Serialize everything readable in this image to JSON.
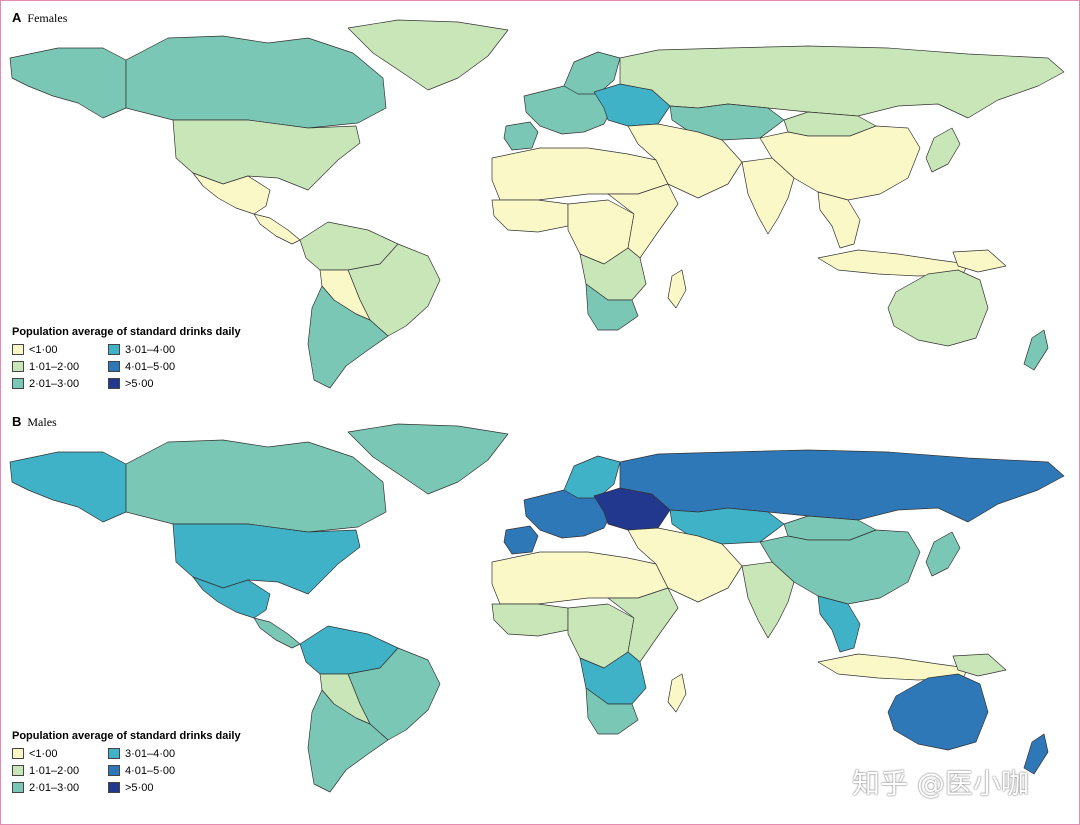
{
  "colors": {
    "lt1": "#fbf8c8",
    "c1to2": "#c9e6b8",
    "c2to3": "#79c7b4",
    "c3to4": "#3fb2c7",
    "c4to5": "#2e78b8",
    "gt5": "#22378e",
    "border": "#333333",
    "frame": "#e58ab0"
  },
  "panels": [
    {
      "letter": "A",
      "title": "Females",
      "legend_title": "Population average of standard drinks daily",
      "legend": [
        {
          "label": "<1·00",
          "key": "lt1"
        },
        {
          "label": "3·01–4·00",
          "key": "c3to4"
        },
        {
          "label": "1·01–2·00",
          "key": "c1to2"
        },
        {
          "label": "4·01–5·00",
          "key": "c4to5"
        },
        {
          "label": "2·01–3·00",
          "key": "c2to3"
        },
        {
          "label": ">5·00",
          "key": "gt5"
        }
      ],
      "regions": {
        "alaska": "c2to3",
        "canada": "c2to3",
        "greenland": "c1to2",
        "usa": "c1to2",
        "mexico": "lt1",
        "central_america": "lt1",
        "south_america_north": "c1to2",
        "brazil": "c1to2",
        "bolivia_paraguay": "lt1",
        "southern_cone": "c2to3",
        "europe_west": "c2to3",
        "scandinavia": "c2to3",
        "iberia": "c2to3",
        "eastern_europe": "c3to4",
        "russia": "c1to2",
        "kazakhstan": "c2to3",
        "china": "lt1",
        "mongolia": "c1to2",
        "japan": "c1to2",
        "north_africa": "lt1",
        "middle_east": "lt1",
        "west_africa": "lt1",
        "central_africa": "lt1",
        "east_africa": "lt1",
        "southern_africa": "c1to2",
        "south_africa": "c2to3",
        "madagascar": "lt1",
        "india": "lt1",
        "southeast_asia": "lt1",
        "indonesia": "lt1",
        "papua": "lt1",
        "australia": "c1to2",
        "new_zealand": "c2to3"
      }
    },
    {
      "letter": "B",
      "title": "Males",
      "legend_title": "Population average of standard drinks daily",
      "legend": [
        {
          "label": "<1·00",
          "key": "lt1"
        },
        {
          "label": "3·01–4·00",
          "key": "c3to4"
        },
        {
          "label": "1·01–2·00",
          "key": "c1to2"
        },
        {
          "label": "4·01–5·00",
          "key": "c4to5"
        },
        {
          "label": "2·01–3·00",
          "key": "c2to3"
        },
        {
          "label": ">5·00",
          "key": "gt5"
        }
      ],
      "regions": {
        "alaska": "c3to4",
        "canada": "c2to3",
        "greenland": "c2to3",
        "usa": "c3to4",
        "mexico": "c3to4",
        "central_america": "c2to3",
        "south_america_north": "c3to4",
        "brazil": "c2to3",
        "bolivia_paraguay": "c1to2",
        "southern_cone": "c2to3",
        "europe_west": "c4to5",
        "scandinavia": "c3to4",
        "iberia": "c4to5",
        "eastern_europe": "gt5",
        "russia": "c4to5",
        "kazakhstan": "c3to4",
        "china": "c2to3",
        "mongolia": "c2to3",
        "japan": "c2to3",
        "north_africa": "lt1",
        "middle_east": "lt1",
        "west_africa": "c1to2",
        "central_africa": "c1to2",
        "east_africa": "c1to2",
        "southern_africa": "c3to4",
        "south_africa": "c2to3",
        "madagascar": "lt1",
        "india": "c1to2",
        "southeast_asia": "c3to4",
        "indonesia": "lt1",
        "papua": "c1to2",
        "australia": "c4to5",
        "new_zealand": "c4to5"
      }
    }
  ],
  "watermark": "知乎 @医小咖"
}
